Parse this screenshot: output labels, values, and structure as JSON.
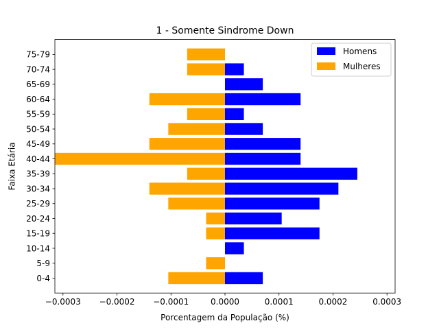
{
  "chart_data": {
    "type": "bar",
    "orientation": "horizontal",
    "title": "1 - Somente Sindrome Down",
    "xlabel": "Porcentagem da População (%)",
    "ylabel": "Faixa Etária",
    "xlim": [
      -0.000315,
      0.000315
    ],
    "xticks": [
      -0.0003,
      -0.0002,
      -0.0001,
      0.0,
      0.0001,
      0.0002,
      0.0003
    ],
    "xtick_labels": [
      "−0.0003",
      "−0.0002",
      "−0.0001",
      "0.0000",
      "0.0001",
      "0.0002",
      "0.0003"
    ],
    "grid": false,
    "legend_position": "top-right",
    "categories": [
      "0-4",
      "5-9",
      "10-14",
      "15-19",
      "20-24",
      "25-29",
      "30-34",
      "35-39",
      "40-44",
      "45-49",
      "50-54",
      "55-59",
      "60-64",
      "65-69",
      "70-74",
      "75-79"
    ],
    "series": [
      {
        "name": "Homens",
        "color": "#0000ff",
        "values": [
          7e-05,
          0,
          3.5e-05,
          0.000175,
          0.000105,
          0.000175,
          0.00021,
          0.000245,
          0.00014,
          0.00014,
          7e-05,
          3.5e-05,
          0.00014,
          7e-05,
          3.5e-05,
          0
        ]
      },
      {
        "name": "Mulheres",
        "color": "#ffa500",
        "values": [
          -0.000105,
          -3.5e-05,
          0,
          -3.5e-05,
          -3.5e-05,
          -0.000105,
          -0.00014,
          -7e-05,
          -0.00035,
          -0.00014,
          -0.000105,
          -7e-05,
          -0.00014,
          0,
          -7e-05,
          -7e-05
        ]
      }
    ]
  }
}
